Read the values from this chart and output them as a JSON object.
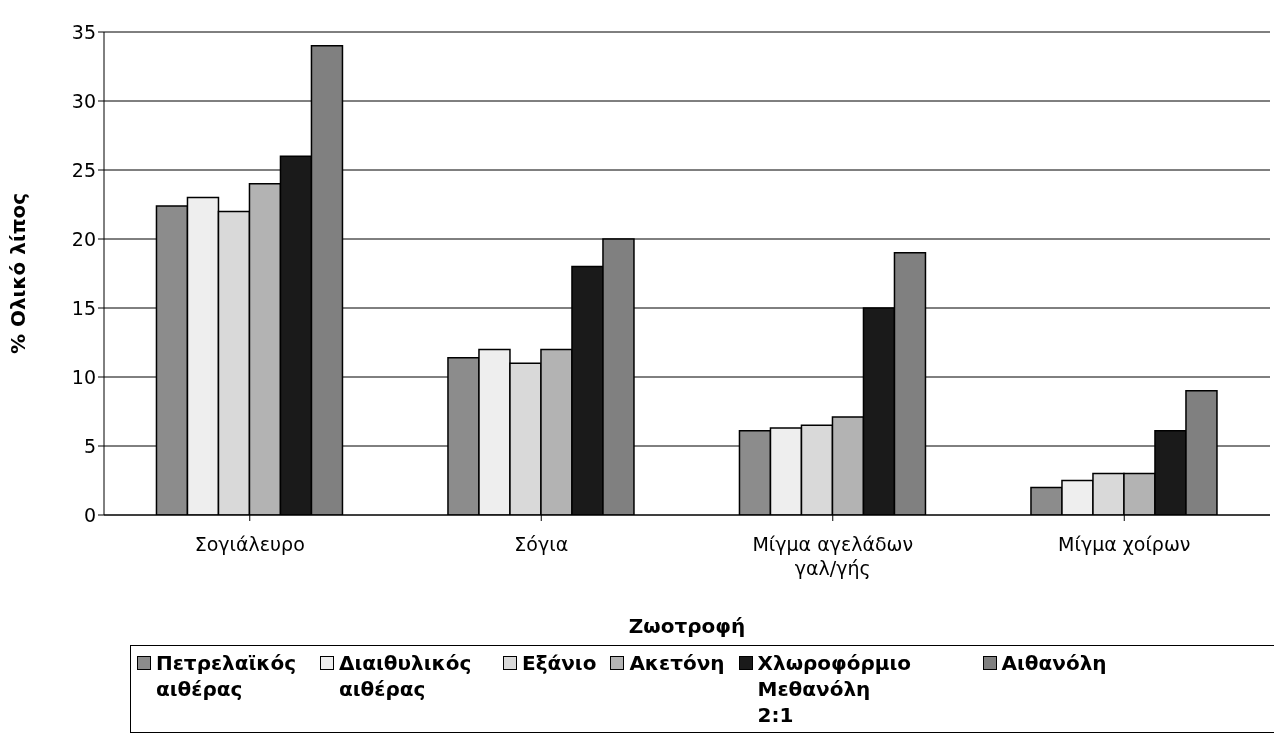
{
  "chart_data": {
    "type": "bar",
    "xlabel": "Ζωοτροφή",
    "ylabel": "% Ολικό λίπος",
    "categories": [
      "Σογιάλευρο",
      "Σόγια",
      "Μίγμα αγελάδων γαλ/γής",
      "Μίγμα χοίρων"
    ],
    "series": [
      {
        "name": "Πετρελαϊκός αιθέρας",
        "color": "#8c8c8c",
        "values": [
          22.4,
          11.4,
          6.1,
          2
        ]
      },
      {
        "name": "Διαιθυλικός αιθέρας",
        "color": "#eeeeee",
        "values": [
          23,
          12,
          6.3,
          2.5
        ]
      },
      {
        "name": "Εξάνιο",
        "color": "#d9d9d9",
        "values": [
          22,
          11,
          6.5,
          3
        ]
      },
      {
        "name": "Ακετόνη",
        "color": "#b3b3b3",
        "values": [
          24,
          12,
          7.1,
          3
        ]
      },
      {
        "name": "Χλωροφόρμιο Μεθανόλη 2:1",
        "color": "#1a1a1a",
        "values": [
          26,
          18,
          15,
          6.1
        ]
      },
      {
        "name": "Αιθανόλη",
        "color": "#808080",
        "values": [
          34,
          20,
          19,
          9
        ]
      }
    ],
    "ylim": [
      0,
      35
    ],
    "yticks": [
      0,
      5,
      10,
      15,
      20,
      25,
      30,
      35
    ],
    "grid": "y",
    "legend": "bottom"
  }
}
